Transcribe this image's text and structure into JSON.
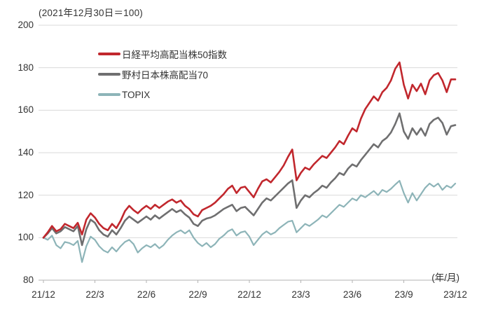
{
  "chart_data": {
    "type": "line",
    "title": "(2021年12月30日＝100)",
    "x_axis_unit": "(年/月)",
    "x_tick_labels": [
      "21/12",
      "22/3",
      "22/6",
      "22/9",
      "22/12",
      "23/3",
      "23/6",
      "23/9",
      "23/12"
    ],
    "x_months_span": 24,
    "x_step_months": 0.25,
    "ylim": [
      80,
      200
    ],
    "y_ticks": [
      200,
      180,
      160,
      140,
      120,
      100,
      80
    ],
    "grid": "horizontal-only",
    "legend_position": "inside-top-left",
    "background_color": "#ffffff",
    "gridline_color": "#d9d9d9",
    "axis_color": "#b3b3b3",
    "text_color": "#333333",
    "series": [
      {
        "name": "日経平均高配当株50指数",
        "color": "#c1272d",
        "width": 2.6,
        "values": [
          100.0,
          102.5,
          105.5,
          103.0,
          104.0,
          106.5,
          105.5,
          104.5,
          107.0,
          101.5,
          108.5,
          111.5,
          109.5,
          106.5,
          104.5,
          103.5,
          106.5,
          104.5,
          108.0,
          112.5,
          115.0,
          113.0,
          111.5,
          113.5,
          115.0,
          113.5,
          115.5,
          114.0,
          115.5,
          117.0,
          118.0,
          116.5,
          117.5,
          115.0,
          113.5,
          111.0,
          110.0,
          113.0,
          114.0,
          115.0,
          116.5,
          118.5,
          120.5,
          123.0,
          124.5,
          121.0,
          123.5,
          124.0,
          121.5,
          119.0,
          123.0,
          126.5,
          127.5,
          126.0,
          128.5,
          131.0,
          134.0,
          138.0,
          141.5,
          127.0,
          130.5,
          133.0,
          132.0,
          134.5,
          136.5,
          138.5,
          137.5,
          140.0,
          142.5,
          145.5,
          144.0,
          148.0,
          151.5,
          150.0,
          156.0,
          160.5,
          163.5,
          166.5,
          164.5,
          168.5,
          170.5,
          174.0,
          179.5,
          182.5,
          172.0,
          165.5,
          172.0,
          169.0,
          172.5,
          167.5,
          174.0,
          176.5,
          177.5,
          174.0,
          168.5,
          174.5,
          174.5
        ]
      },
      {
        "name": "野村日本株高配当70",
        "color": "#6f6f70",
        "width": 2.6,
        "values": [
          100.0,
          102.0,
          104.5,
          102.0,
          103.0,
          105.0,
          104.0,
          103.0,
          105.5,
          96.5,
          104.0,
          108.5,
          107.0,
          103.5,
          101.5,
          100.5,
          103.5,
          101.5,
          104.5,
          108.0,
          110.0,
          108.5,
          107.0,
          108.5,
          110.0,
          108.5,
          110.5,
          109.0,
          110.5,
          112.0,
          113.5,
          112.0,
          113.0,
          111.0,
          109.5,
          106.5,
          105.5,
          108.0,
          109.0,
          109.5,
          110.5,
          112.0,
          113.5,
          114.5,
          115.5,
          112.5,
          114.0,
          114.5,
          112.5,
          110.5,
          113.5,
          116.5,
          118.5,
          117.5,
          119.5,
          121.5,
          123.5,
          125.5,
          127.0,
          114.0,
          117.5,
          120.0,
          119.0,
          121.0,
          122.5,
          124.5,
          123.5,
          126.0,
          128.0,
          130.5,
          129.5,
          132.5,
          134.5,
          133.5,
          136.5,
          139.0,
          141.5,
          144.0,
          142.5,
          145.5,
          147.0,
          149.5,
          153.5,
          158.5,
          150.0,
          146.5,
          151.5,
          148.5,
          151.5,
          148.0,
          153.5,
          155.5,
          156.5,
          154.0,
          148.5,
          152.5,
          153.0
        ]
      },
      {
        "name": "TOPIX",
        "color": "#8db4b8",
        "width": 2.2,
        "values": [
          100.0,
          99.0,
          101.0,
          96.5,
          95.0,
          98.0,
          97.5,
          96.5,
          98.5,
          88.5,
          96.0,
          100.5,
          99.0,
          96.0,
          94.0,
          93.0,
          95.5,
          93.5,
          96.0,
          98.0,
          99.0,
          97.0,
          93.0,
          95.0,
          96.5,
          95.5,
          97.0,
          95.0,
          96.5,
          99.0,
          101.0,
          102.5,
          103.5,
          102.0,
          103.5,
          100.0,
          97.5,
          96.0,
          97.5,
          95.5,
          97.0,
          99.5,
          101.0,
          103.0,
          104.0,
          101.0,
          102.5,
          103.0,
          100.5,
          96.5,
          99.0,
          101.5,
          103.0,
          101.5,
          102.5,
          104.5,
          106.0,
          107.5,
          108.0,
          102.5,
          104.5,
          106.5,
          105.5,
          107.0,
          108.5,
          110.5,
          109.5,
          111.5,
          113.5,
          115.5,
          114.5,
          116.5,
          118.5,
          117.5,
          120.0,
          119.0,
          120.5,
          122.0,
          120.0,
          122.5,
          121.5,
          123.0,
          125.0,
          126.8,
          121.0,
          116.5,
          121.0,
          117.5,
          120.5,
          123.5,
          125.5,
          124.0,
          125.5,
          122.5,
          124.5,
          123.5,
          125.5
        ]
      }
    ]
  }
}
